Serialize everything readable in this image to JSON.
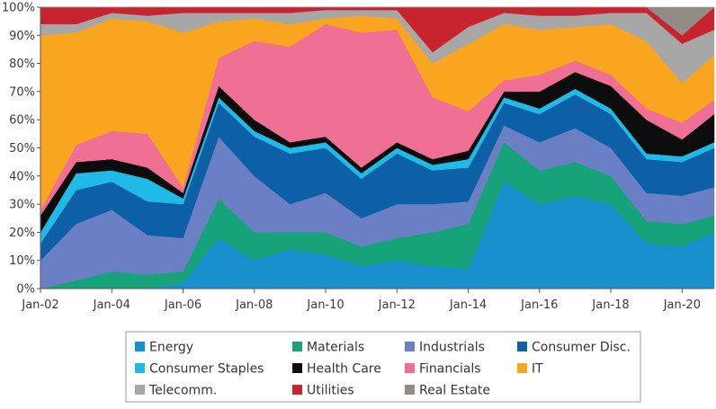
{
  "chart_data": {
    "type": "area",
    "stacked": true,
    "normalized": true,
    "title": "",
    "xlabel": "",
    "ylabel": "",
    "ylim": [
      0,
      100
    ],
    "y_unit": "%",
    "y_ticks": [
      "0%",
      "10%",
      "20%",
      "30%",
      "40%",
      "50%",
      "60%",
      "70%",
      "80%",
      "90%",
      "100%"
    ],
    "x_tick_labels": [
      "Jan-02",
      "Jan-04",
      "Jan-06",
      "Jan-08",
      "Jan-10",
      "Jan-12",
      "Jan-14",
      "Jan-16",
      "Jan-18",
      "Jan-20"
    ],
    "x_tick_years": [
      2002,
      2004,
      2006,
      2008,
      2010,
      2012,
      2014,
      2016,
      2018,
      2020
    ],
    "x_range": [
      2002,
      2020.9
    ],
    "legend_position": "bottom",
    "x": [
      2002,
      2003,
      2004,
      2005,
      2006,
      2007,
      2008,
      2009,
      2010,
      2011,
      2012,
      2013,
      2014,
      2015,
      2016,
      2017,
      2018,
      2019,
      2020,
      2020.9
    ],
    "series": [
      {
        "name": "Energy",
        "color": "#1a8fce",
        "values": [
          0,
          0,
          0,
          0,
          2,
          18,
          10,
          14,
          12,
          8,
          10,
          8,
          7,
          38,
          30,
          33,
          30,
          16,
          15,
          20
        ]
      },
      {
        "name": "Materials",
        "color": "#17a37a",
        "values": [
          0,
          3,
          6,
          5,
          4,
          14,
          10,
          6,
          8,
          7,
          8,
          12,
          16,
          14,
          12,
          12,
          10,
          8,
          8,
          6
        ]
      },
      {
        "name": "Industrials",
        "color": "#6b7fc4",
        "values": [
          10,
          20,
          22,
          14,
          12,
          22,
          20,
          10,
          14,
          10,
          12,
          10,
          8,
          6,
          10,
          12,
          10,
          10,
          10,
          10
        ]
      },
      {
        "name": "Consumer Disc.",
        "color": "#0d5fa6",
        "values": [
          6,
          12,
          10,
          12,
          12,
          12,
          14,
          18,
          16,
          14,
          18,
          12,
          12,
          8,
          10,
          12,
          12,
          12,
          12,
          14
        ]
      },
      {
        "name": "Consumer Staples",
        "color": "#1fbbe6",
        "values": [
          4,
          6,
          4,
          8,
          2,
          2,
          2,
          2,
          2,
          2,
          2,
          2,
          3,
          2,
          2,
          2,
          2,
          2,
          2,
          2
        ]
      },
      {
        "name": "Health Care",
        "color": "#0c0c0c",
        "values": [
          6,
          4,
          4,
          4,
          2,
          4,
          4,
          2,
          2,
          2,
          2,
          2,
          3,
          2,
          6,
          6,
          8,
          12,
          6,
          10
        ]
      },
      {
        "name": "Financials",
        "color": "#ef6f95",
        "values": [
          2,
          6,
          10,
          12,
          2,
          10,
          28,
          34,
          40,
          48,
          40,
          22,
          14,
          4,
          6,
          4,
          4,
          4,
          6,
          5
        ]
      },
      {
        "name": "IT",
        "color": "#f9a51f",
        "values": [
          62,
          40,
          40,
          40,
          55,
          13,
          8,
          8,
          2,
          6,
          4,
          12,
          24,
          20,
          16,
          12,
          18,
          24,
          14,
          16
        ]
      },
      {
        "name": "Telecomm.",
        "color": "#a7a7a7",
        "values": [
          4,
          3,
          2,
          2,
          7,
          3,
          2,
          4,
          3,
          2,
          3,
          4,
          6,
          4,
          5,
          4,
          4,
          10,
          14,
          9
        ]
      },
      {
        "name": "Utilities",
        "color": "#c8242f",
        "values": [
          6,
          6,
          2,
          3,
          2,
          2,
          2,
          2,
          1,
          1,
          1,
          16,
          7,
          2,
          3,
          3,
          2,
          2,
          3,
          8
        ]
      },
      {
        "name": "Real Estate",
        "color": "#938b85",
        "values": [
          0,
          0,
          0,
          0,
          0,
          0,
          0,
          0,
          0,
          0,
          0,
          0,
          0,
          0,
          0,
          0,
          0,
          0,
          10,
          0
        ]
      }
    ]
  }
}
